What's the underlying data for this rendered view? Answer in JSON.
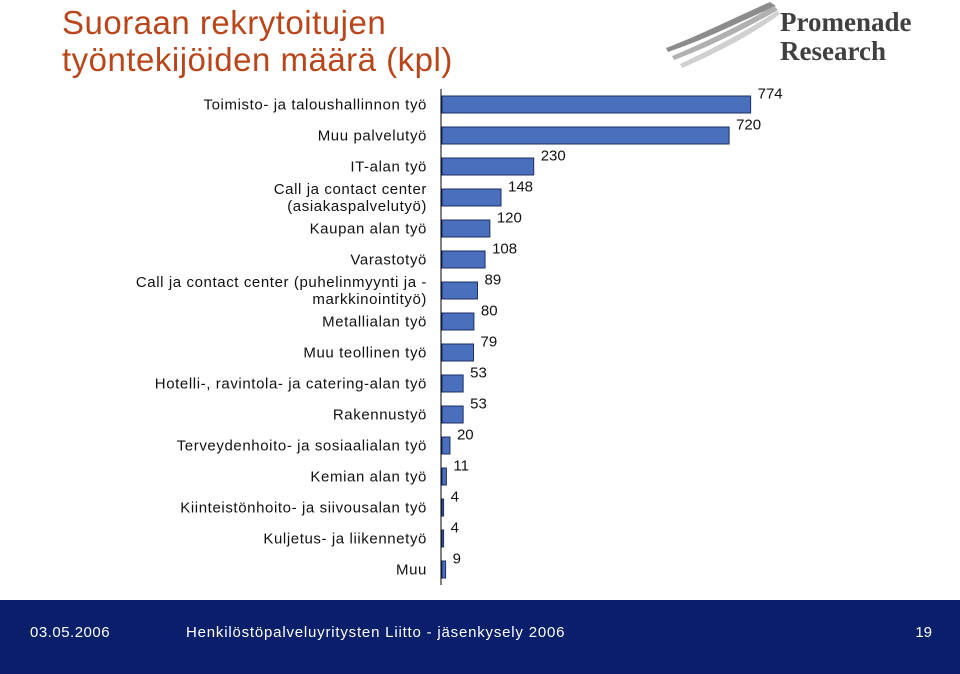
{
  "header": {
    "title_line1": "Suoraan rekrytoitujen",
    "title_line2": "työntekijöiden määrä (kpl)",
    "title_color": "#b8461a"
  },
  "logo": {
    "line1": "Promenade",
    "line2": "Research",
    "icon": "swoosh-logo-icon"
  },
  "chart_data": {
    "type": "bar",
    "orientation": "horizontal",
    "categories": [
      [
        "Toimisto- ja taloushallinnon työ"
      ],
      [
        "Muu palvelutyö"
      ],
      [
        "IT-alan työ"
      ],
      [
        "Call ja contact center",
        "(asiakaspalvelutyö)"
      ],
      [
        "Kaupan alan työ"
      ],
      [
        "Varastotyö"
      ],
      [
        "Call ja contact center (puhelinmyynti ja -",
        "markkinointityö)"
      ],
      [
        "Metallialan työ"
      ],
      [
        "Muu teollinen työ"
      ],
      [
        "Hotelli-, ravintola- ja catering-alan työ"
      ],
      [
        "Rakennustyö"
      ],
      [
        "Terveydenhoito- ja sosiaalialan työ"
      ],
      [
        "Kemian alan työ"
      ],
      [
        "Kiinteistönhoito- ja siivousalan työ"
      ],
      [
        "Kuljetus- ja liikennetyö"
      ],
      [
        "Muu"
      ]
    ],
    "values": [
      774,
      720,
      230,
      148,
      120,
      108,
      89,
      80,
      79,
      53,
      53,
      20,
      11,
      4,
      4,
      9
    ],
    "xlim": [
      0,
      800
    ],
    "xticks": [
      0,
      200,
      400,
      600,
      800
    ],
    "grid": false,
    "legend": "none",
    "bar_color": "#4a6fbd",
    "bar_edge_color": "#1c2f66"
  },
  "footer": {
    "date": "03.05.2006",
    "source": "Henkilöstöpalveluyritysten Liitto - jäsenkysely 2006",
    "page": "19",
    "background": "#0a1f6b"
  }
}
